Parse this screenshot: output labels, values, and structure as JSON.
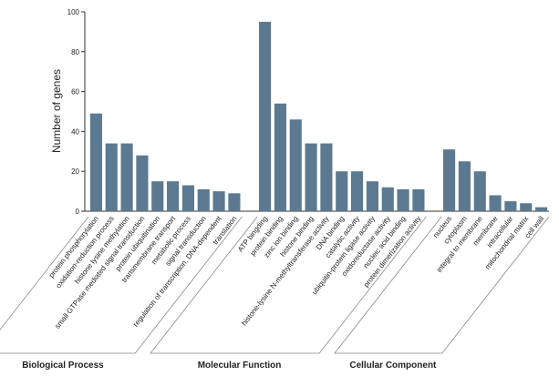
{
  "chart_data": {
    "type": "grouped-bar",
    "y_label": "Number of genes",
    "ylim": [
      0,
      100
    ],
    "yticks": [
      0,
      20,
      40,
      60,
      80,
      100
    ],
    "color": "#5b7a91",
    "groups": [
      {
        "name": "Biological Process",
        "categories": [
          "protein phosphorylation",
          "oxidation-reduction process",
          "histone lysine methylation",
          "small GTPase mediated signal transduction",
          "protein ubiquitination",
          "transmembrane transport",
          "metabolic process",
          "signal transduction",
          "regulation of transcription, DNA-dependent",
          "translation"
        ],
        "values": [
          49,
          34,
          34,
          28,
          15,
          15,
          13,
          11,
          10,
          9
        ]
      },
      {
        "name": "Molecular Function",
        "categories": [
          "ATP bingding",
          "protein binding",
          "zinc ion binding",
          "histone binding",
          "histone-lysine N-methyltransferase activity",
          "DNA binding",
          "catalytic activity",
          "ubiquitin-protein ligase activity",
          "oxidoreductase activity",
          "nucleic acid binding",
          "protein dimerization activity"
        ],
        "values": [
          95,
          54,
          46,
          34,
          34,
          20,
          20,
          15,
          12,
          11,
          11
        ]
      },
      {
        "name": "Cellular Component",
        "categories": [
          "nucleus",
          "cytoplasm",
          "integral to membrane",
          "membrane",
          "intracellular",
          "mitochondrial matrix",
          "cell wall"
        ],
        "values": [
          31,
          25,
          20,
          8,
          5,
          4,
          2
        ]
      }
    ]
  }
}
